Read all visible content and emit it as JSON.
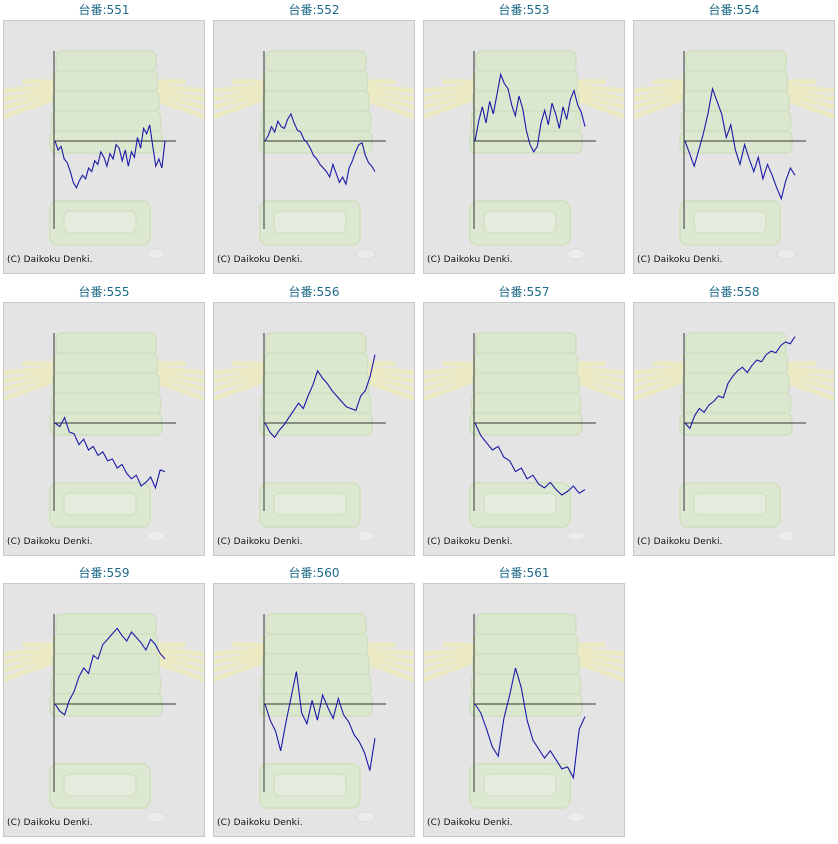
{
  "copyright": "(C) Daikoku Denki.",
  "colors": {
    "title": "#1d6a88",
    "line": "#1a1aa8",
    "axis": "#333333",
    "panel": "#e4e4e4"
  },
  "machines": [
    {
      "label": "台番:551"
    },
    {
      "label": "台番:552"
    },
    {
      "label": "台番:553"
    },
    {
      "label": "台番:554"
    },
    {
      "label": "台番:555"
    },
    {
      "label": "台番:556"
    },
    {
      "label": "台番:557"
    },
    {
      "label": "台番:558"
    },
    {
      "label": "台番:559"
    },
    {
      "label": "台番:560"
    },
    {
      "label": "台番:561"
    }
  ],
  "chart_data": [
    {
      "type": "line",
      "values": [
        0,
        -10,
        -6,
        -20,
        -24,
        -34,
        -46,
        -52,
        -44,
        -38,
        -42,
        -30,
        -34,
        -22,
        -26,
        -12,
        -18,
        -28,
        -14,
        -20,
        -4,
        -8,
        -22,
        -10,
        -28,
        -12,
        -18,
        4,
        -8,
        14,
        8,
        18,
        -6,
        -28,
        -20,
        -30,
        0
      ]
    },
    {
      "type": "line",
      "values": [
        0,
        6,
        16,
        10,
        22,
        16,
        14,
        24,
        30,
        20,
        12,
        10,
        2,
        -2,
        -8,
        -16,
        -20,
        -26,
        -30,
        -34,
        -40,
        -26,
        -36,
        -46,
        -40,
        -48,
        -30,
        -22,
        -12,
        -4,
        -2,
        -16,
        -24,
        -28,
        -34
      ]
    },
    {
      "type": "line",
      "values": [
        0,
        22,
        38,
        20,
        44,
        30,
        52,
        74,
        64,
        58,
        40,
        28,
        50,
        36,
        12,
        -4,
        -12,
        -6,
        20,
        34,
        18,
        42,
        30,
        14,
        38,
        24,
        46,
        56,
        40,
        32,
        16
      ]
    },
    {
      "type": "line",
      "values": [
        0,
        -14,
        -28,
        -10,
        8,
        30,
        58,
        44,
        30,
        4,
        18,
        -10,
        -26,
        -4,
        -20,
        -34,
        -18,
        -42,
        -26,
        -38,
        -52,
        -64,
        -44,
        -30,
        -38
      ]
    },
    {
      "type": "line",
      "values": [
        0,
        -4,
        6,
        -10,
        -12,
        -24,
        -18,
        -30,
        -26,
        -36,
        -32,
        -42,
        -40,
        -50,
        -46,
        -56,
        -62,
        -58,
        -70,
        -66,
        -60,
        -72,
        -52,
        -54
      ]
    },
    {
      "type": "line",
      "values": [
        0,
        -10,
        -16,
        -8,
        -2,
        6,
        14,
        22,
        16,
        30,
        42,
        58,
        50,
        44,
        36,
        30,
        24,
        18,
        16,
        14,
        30,
        36,
        52,
        76
      ]
    },
    {
      "type": "line",
      "values": [
        0,
        -14,
        -22,
        -30,
        -26,
        -38,
        -42,
        -54,
        -50,
        -62,
        -58,
        -68,
        -72,
        -66,
        -74,
        -80,
        -76,
        -70,
        -78,
        -74
      ]
    },
    {
      "type": "line",
      "values": [
        0,
        -6,
        8,
        16,
        12,
        20,
        24,
        30,
        28,
        44,
        52,
        58,
        62,
        56,
        64,
        70,
        68,
        76,
        80,
        78,
        86,
        90,
        88,
        96
      ]
    },
    {
      "type": "line",
      "values": [
        0,
        -8,
        -12,
        4,
        14,
        30,
        40,
        34,
        54,
        50,
        66,
        72,
        78,
        84,
        76,
        70,
        80,
        74,
        68,
        60,
        72,
        66,
        56,
        50
      ]
    },
    {
      "type": "line",
      "values": [
        0,
        -18,
        -30,
        -52,
        -20,
        8,
        36,
        -10,
        -22,
        4,
        -18,
        10,
        -4,
        -16,
        6,
        -12,
        -20,
        -34,
        -42,
        -54,
        -74,
        -38
      ]
    },
    {
      "type": "line",
      "values": [
        0,
        -10,
        -28,
        -48,
        -58,
        -16,
        10,
        40,
        18,
        -18,
        -40,
        -50,
        -60,
        -52,
        -62,
        -72,
        -70,
        -82,
        -28,
        -14
      ]
    }
  ]
}
